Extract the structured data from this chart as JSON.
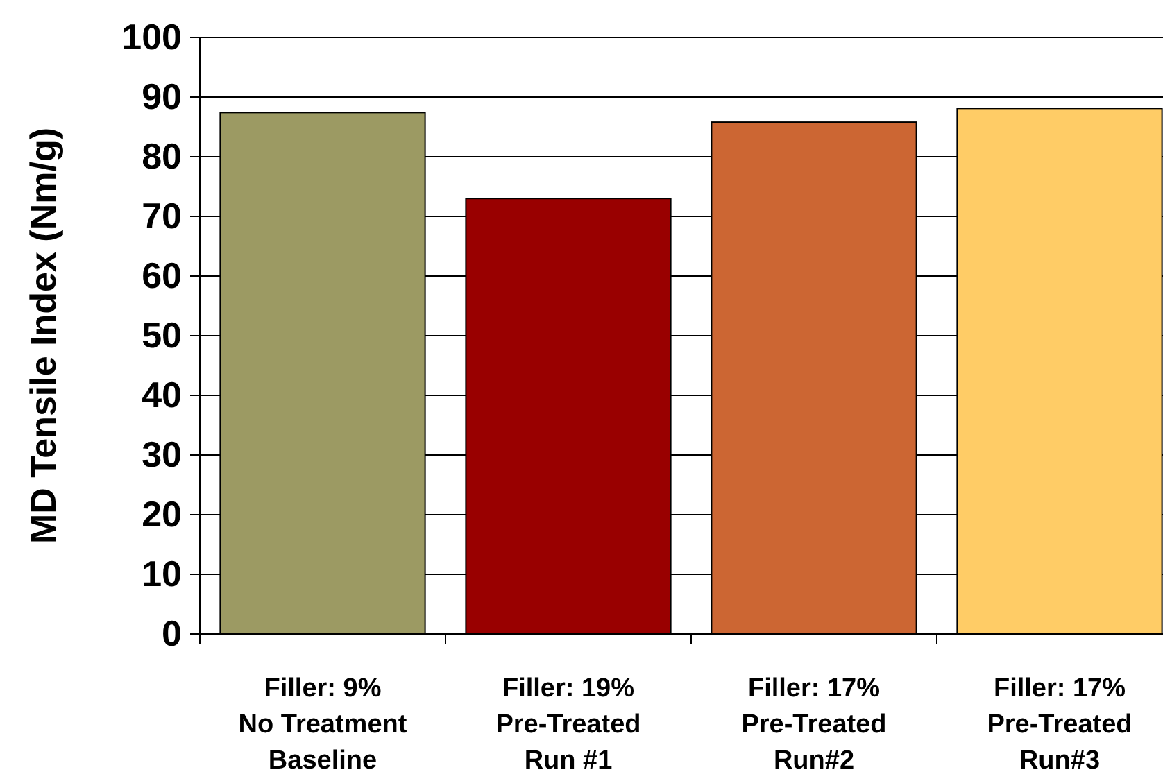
{
  "chart_data": {
    "type": "bar",
    "ylabel": "MD Tensile Index (Nm/g)",
    "categories": [
      "Filler:  9%\nNo Treatment\nBaseline",
      "Filler: 19%\nPre-Treated\nRun #1",
      "Filler: 17%\nPre-Treated\nRun#2",
      "Filler: 17%\nPre-Treated\nRun#3"
    ],
    "values": [
      87.4,
      73.0,
      85.8,
      88.1
    ],
    "colors": [
      "#9c9a63",
      "#990000",
      "#cc6633",
      "#ffcc66"
    ],
    "ylim": [
      0,
      100
    ],
    "yticks": [
      0,
      10,
      20,
      30,
      40,
      50,
      60,
      70,
      80,
      90,
      100
    ],
    "grid": "y"
  }
}
